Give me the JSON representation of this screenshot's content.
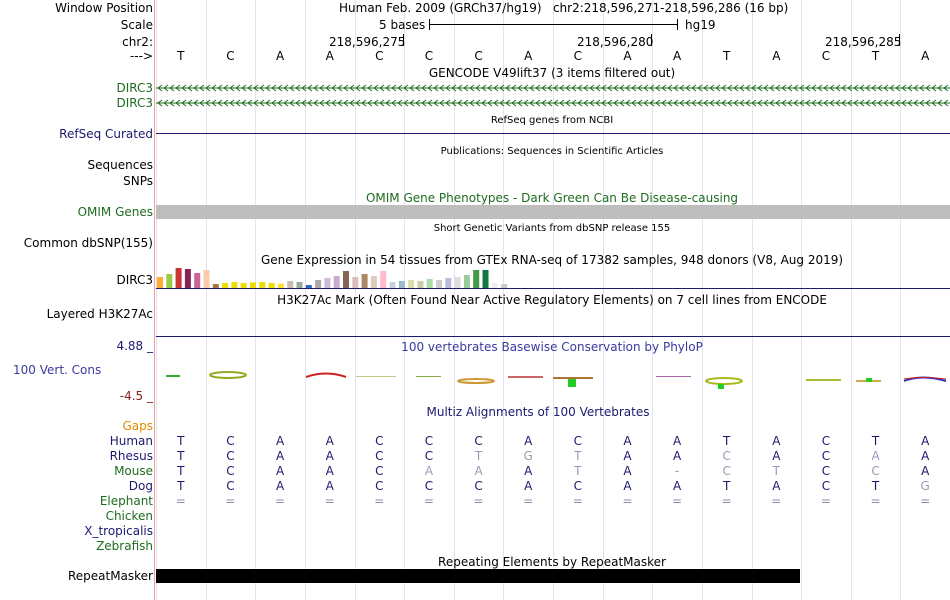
{
  "header": {
    "window_position_label": "Window Position",
    "window_position_value": "Human Feb. 2009 (GRCh37/hg19)   chr2:218,596,271-218,596,286 (16 bp)",
    "scale_label": "Scale",
    "scale_text": "5 bases",
    "scale_assembly": "hg19",
    "chrom_label": "chr2:",
    "coords": [
      "218,596,275",
      "218,596,280",
      "218,596,285"
    ],
    "strand_label": "--->"
  },
  "bases": [
    "T",
    "C",
    "A",
    "A",
    "C",
    "C",
    "C",
    "A",
    "C",
    "A",
    "A",
    "T",
    "A",
    "C",
    "T",
    "A"
  ],
  "tracks": {
    "gencode_title": "GENCODE V49lift37 (3 items filtered out)",
    "gencode_genes": [
      "DIRC3",
      "DIRC3"
    ],
    "refseq_label": "RefSeq Curated",
    "refseq_title": "RefSeq genes from NCBI",
    "publications_title": "Publications: Sequences in Scientific Articles",
    "sequences_label": "Sequences",
    "snps_label": "SNPs",
    "omim_title": "OMIM Gene Phenotypes - Dark Green Can Be Disease-causing",
    "omim_label": "OMIM Genes",
    "dbsnp_title": "Short Genetic Variants from dbSNP release 155",
    "dbsnp_label": "Common dbSNP(155)",
    "gtex_title": "Gene Expression in 54 tissues from GTEx RNA-seq of 17382 samples, 948 donors (V8, Aug 2019)",
    "gtex_label": "DIRC3",
    "h3k27ac_title": "H3K27Ac Mark (Often Found Near Active Regulatory Elements) on 7 cell lines from ENCODE",
    "h3k27ac_label": "Layered H3K27Ac",
    "cons_max": "4.88 _",
    "cons_title": "100 vertebrates Basewise Conservation by PhyloP",
    "cons_label": "100 Vert. Cons",
    "cons_min": "-4.5 _",
    "multiz_title": "Multiz Alignments of 100 Vertebrates",
    "gaps_label": "Gaps",
    "repeat_title": "Repeating Elements by RepeatMasker",
    "repeat_label": "RepeatMasker"
  },
  "alignments": [
    {
      "species": "Human",
      "bases": [
        "T",
        "C",
        "A",
        "A",
        "C",
        "C",
        "C",
        "A",
        "C",
        "A",
        "A",
        "T",
        "A",
        "C",
        "T",
        "A"
      ]
    },
    {
      "species": "Rhesus",
      "bases": [
        "T",
        "C",
        "A",
        "A",
        "C",
        "C",
        "T",
        "G",
        "T",
        "A",
        "A",
        "C",
        "A",
        "C",
        "A",
        "A"
      ]
    },
    {
      "species": "Mouse",
      "bases": [
        "T",
        "C",
        "A",
        "A",
        "C",
        "A",
        "A",
        "A",
        "T",
        "A",
        "-",
        "C",
        "T",
        "C",
        "C",
        "A"
      ]
    },
    {
      "species": "Dog",
      "bases": [
        "T",
        "C",
        "A",
        "A",
        "C",
        "C",
        "C",
        "A",
        "C",
        "A",
        "A",
        "T",
        "A",
        "C",
        "T",
        "G"
      ]
    },
    {
      "species": "Elephant",
      "bases": [
        "=",
        "=",
        "=",
        "=",
        "=",
        "=",
        "=",
        "=",
        "=",
        "=",
        "=",
        "=",
        "=",
        "=",
        "=",
        "="
      ]
    }
  ],
  "other_species": [
    "Chicken",
    "X_tropicalis",
    "Zebrafish"
  ],
  "gtex_bar_colors": [
    "#ffaa33",
    "#99cc44",
    "#cc3333",
    "#882255",
    "#cc6699",
    "#ffccaa",
    "#aa7744",
    "#eedd00",
    "#eedd00",
    "#eedd00",
    "#eedd00",
    "#eedd00",
    "#eedd00",
    "#ffdd33",
    "#ccbbaa",
    "#99aa99",
    "#3366cc",
    "#aaaaaa",
    "#ccbbdd",
    "#ccaacc",
    "#886655",
    "#ddbbbb",
    "#aa8866",
    "#ddccbb",
    "#ffbbcc",
    "#ccccdd",
    "#99bbcc",
    "#ddddaa",
    "#ccccaa",
    "#aaddaa",
    "#cccccc",
    "#bbbbdd",
    "#dddddd",
    "#99cc99",
    "#449944",
    "#117744",
    "#eeeeee",
    "#cccccc"
  ],
  "gtex_bar_levels": [
    0.55,
    0.7,
    1.0,
    0.95,
    0.75,
    0.9,
    0.2,
    0.25,
    0.3,
    0.25,
    0.28,
    0.3,
    0.25,
    0.22,
    0.35,
    0.3,
    0.15,
    0.4,
    0.5,
    0.6,
    0.85,
    0.55,
    0.7,
    0.6,
    0.85,
    0.3,
    0.35,
    0.4,
    0.35,
    0.45,
    0.4,
    0.5,
    0.55,
    0.65,
    0.9,
    0.9,
    0.25,
    0.2
  ]
}
